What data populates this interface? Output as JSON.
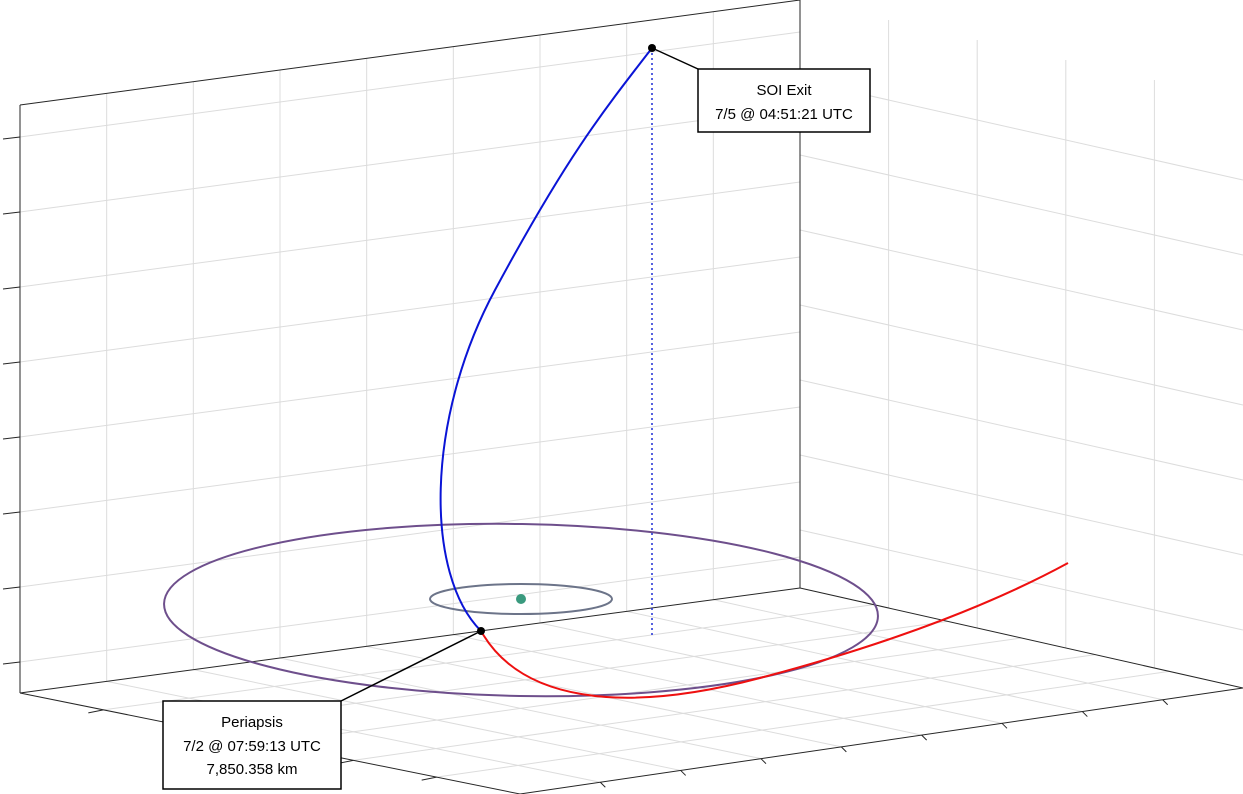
{
  "annotations": [
    {
      "title": "SOI Exit",
      "lines": [
        "7/5 @ 04:51:21 UTC"
      ]
    },
    {
      "title": "Periapsis",
      "lines": [
        "7/2 @ 07:59:13 UTC",
        "7,850.358 km"
      ]
    }
  ]
}
